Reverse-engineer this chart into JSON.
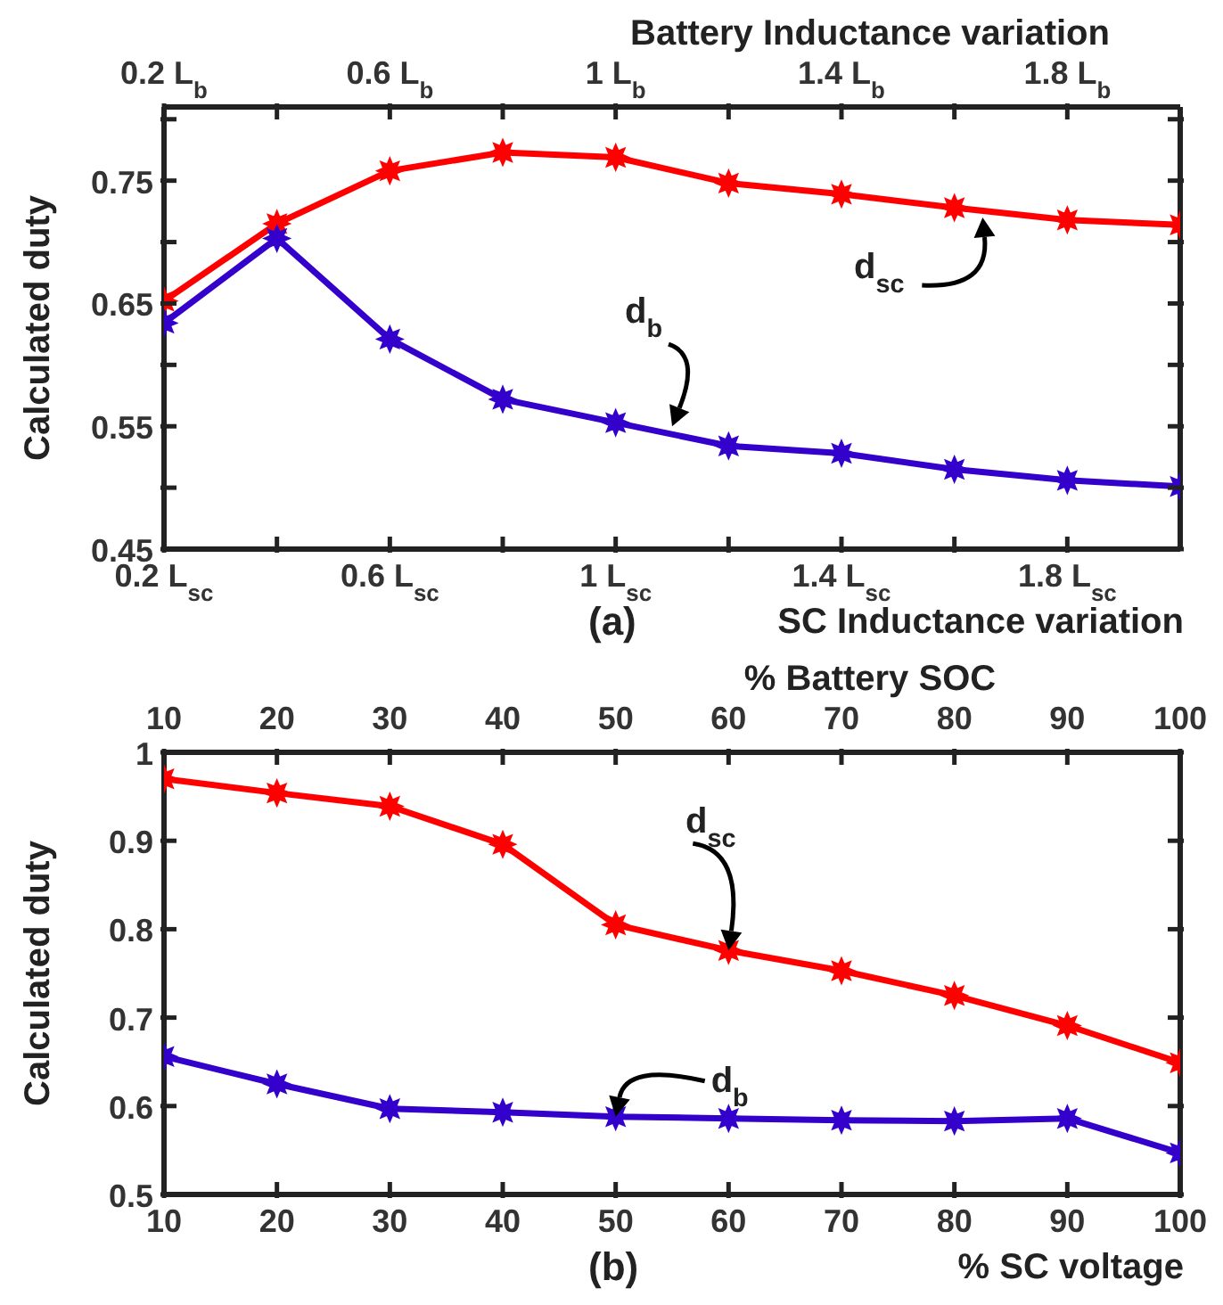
{
  "chart_data": [
    {
      "type": "line",
      "xlabel": "SC Inductance variation",
      "x2label": "Battery Inductance variation",
      "ylabel": "Calculated duty",
      "x": [
        0.2,
        0.4,
        0.6,
        0.8,
        1.0,
        1.2,
        1.4,
        1.6,
        1.8,
        2.0
      ],
      "series": [
        {
          "color": "#ff0000",
          "values": [
            0.652,
            0.715,
            0.758,
            0.773,
            0.769,
            0.748,
            0.739,
            0.728,
            0.718,
            0.714
          ]
        },
        {
          "color": "#3300cc",
          "values": [
            0.634,
            0.703,
            0.621,
            0.572,
            0.553,
            0.534,
            0.528,
            0.515,
            0.506,
            0.501
          ]
        }
      ],
      "xlim": [
        0.2,
        2.0
      ],
      "xticks": [
        {
          "value": 0.2,
          "label": "0.2 L$_{sc}$"
        },
        {
          "value": 0.4,
          "label": null
        },
        {
          "value": 0.6,
          "label": "0.6 L$_{sc}$"
        },
        {
          "value": 0.8,
          "label": null
        },
        {
          "value": 1.0,
          "label": "1 L$_{sc}$"
        },
        {
          "value": 1.2,
          "label": null
        },
        {
          "value": 1.4,
          "label": "1.4 L$_{sc}$"
        },
        {
          "value": 1.6,
          "label": null
        },
        {
          "value": 1.8,
          "label": "1.8 L$_{sc}$"
        }
      ],
      "x2lim": [
        0.2,
        2.0
      ],
      "x2ticks": [
        {
          "value": 0.2,
          "label": "0.2 L$_{b}$"
        },
        {
          "value": 0.4,
          "label": null
        },
        {
          "value": 0.6,
          "label": "0.6 L$_{b}$"
        },
        {
          "value": 0.8,
          "label": null
        },
        {
          "value": 1.0,
          "label": "1 L$_{b}$"
        },
        {
          "value": 1.2,
          "label": null
        },
        {
          "value": 1.4,
          "label": "1.4 L$_{b}$"
        },
        {
          "value": 1.6,
          "label": null
        },
        {
          "value": 1.8,
          "label": "1.8 L$_{b}$"
        }
      ],
      "ylim": [
        0.45,
        0.81
      ],
      "yticks": [
        0.45,
        {
          "value": 0.5,
          "label": null
        },
        0.55,
        {
          "value": 0.6,
          "label": null
        },
        0.65,
        {
          "value": 0.7,
          "label": null
        },
        0.75,
        {
          "value": 0.8,
          "label": null
        }
      ],
      "marker": "star",
      "line_style": "solid",
      "grid": false,
      "legend": false,
      "annotations": [
        "(a)",
        {
          "text": "d$_{sc}$",
          "x": 1.65,
          "y": 0.72
        },
        {
          "text": "d$_{b}$",
          "x": 1.1,
          "y": 0.55
        }
      ]
    },
    {
      "type": "line",
      "xlabel": "% SC voltage",
      "x2label": "% Battery SOC",
      "ylabel": "Calculated duty",
      "x": [
        10,
        20,
        30,
        40,
        50,
        60,
        70,
        80,
        90,
        100
      ],
      "series": [
        {
          "color": "#ff0000",
          "values": [
            0.97,
            0.954,
            0.939,
            0.896,
            0.805,
            0.776,
            0.753,
            0.725,
            0.691,
            0.649
          ]
        },
        {
          "color": "#3300cc",
          "values": [
            0.656,
            0.625,
            0.597,
            0.593,
            0.588,
            0.586,
            0.584,
            0.583,
            0.586,
            0.547
          ]
        }
      ],
      "xlim": [
        10,
        100
      ],
      "xticks": [
        10,
        20,
        30,
        40,
        50,
        60,
        70,
        80,
        90,
        100
      ],
      "x2lim": [
        10,
        100
      ],
      "x2ticks": [
        10,
        20,
        30,
        40,
        50,
        60,
        70,
        80,
        90,
        100
      ],
      "ylim": [
        0.5,
        1
      ],
      "yticks": [
        0.5,
        0.6,
        0.7,
        0.8,
        0.9,
        1
      ],
      "marker": "star",
      "line_style": "solid",
      "grid": false,
      "legend": false,
      "annotations": [
        "(b)",
        {
          "text": "d$_{sc}$",
          "x": 60,
          "y": 0.776
        },
        {
          "text": "d$_{b}$",
          "x": 50,
          "y": 0.588
        }
      ]
    }
  ]
}
